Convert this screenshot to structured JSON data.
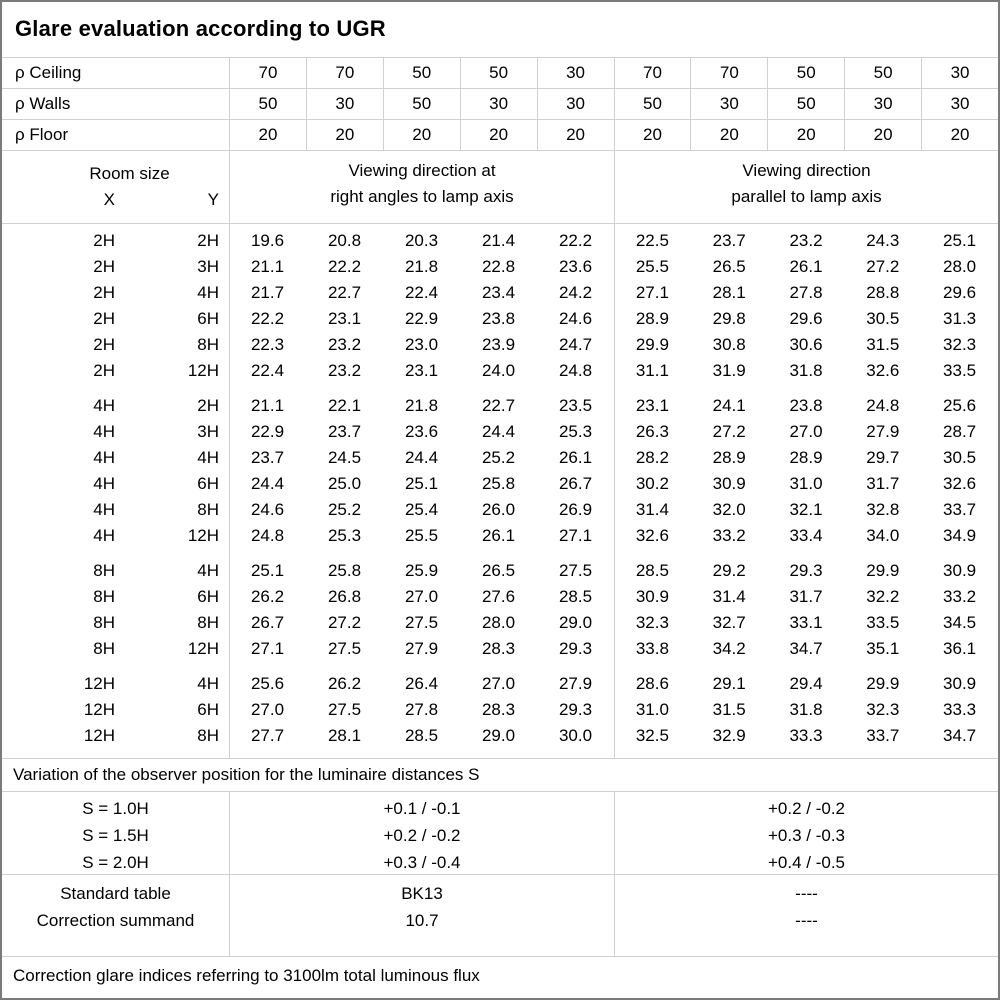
{
  "title": "Glare evaluation according to UGR",
  "colors": {
    "outer_border": "#7a7a7a",
    "grid_line": "#d0d0d0",
    "text": "#000000",
    "background": "#ffffff"
  },
  "reflectance_rows": [
    {
      "label": "ρ Ceiling",
      "values": [
        "70",
        "70",
        "50",
        "50",
        "30",
        "70",
        "70",
        "50",
        "50",
        "30"
      ]
    },
    {
      "label": "ρ Walls",
      "values": [
        "50",
        "30",
        "50",
        "30",
        "30",
        "50",
        "30",
        "50",
        "30",
        "30"
      ]
    },
    {
      "label": "ρ Floor",
      "values": [
        "20",
        "20",
        "20",
        "20",
        "20",
        "20",
        "20",
        "20",
        "20",
        "20"
      ]
    }
  ],
  "room_header": {
    "room_size": "Room size",
    "x": "X",
    "y": "Y",
    "group_right_angle": {
      "line1": "Viewing direction at",
      "line2": "right angles to lamp axis"
    },
    "group_parallel": {
      "line1": "Viewing direction",
      "line2": "parallel to lamp axis"
    }
  },
  "ugr_blocks": [
    {
      "rows": [
        {
          "x": "2H",
          "y": "2H",
          "right_angle": [
            "19.6",
            "20.8",
            "20.3",
            "21.4",
            "22.2"
          ],
          "parallel": [
            "22.5",
            "23.7",
            "23.2",
            "24.3",
            "25.1"
          ]
        },
        {
          "x": "2H",
          "y": "3H",
          "right_angle": [
            "21.1",
            "22.2",
            "21.8",
            "22.8",
            "23.6"
          ],
          "parallel": [
            "25.5",
            "26.5",
            "26.1",
            "27.2",
            "28.0"
          ]
        },
        {
          "x": "2H",
          "y": "4H",
          "right_angle": [
            "21.7",
            "22.7",
            "22.4",
            "23.4",
            "24.2"
          ],
          "parallel": [
            "27.1",
            "28.1",
            "27.8",
            "28.8",
            "29.6"
          ]
        },
        {
          "x": "2H",
          "y": "6H",
          "right_angle": [
            "22.2",
            "23.1",
            "22.9",
            "23.8",
            "24.6"
          ],
          "parallel": [
            "28.9",
            "29.8",
            "29.6",
            "30.5",
            "31.3"
          ]
        },
        {
          "x": "2H",
          "y": "8H",
          "right_angle": [
            "22.3",
            "23.2",
            "23.0",
            "23.9",
            "24.7"
          ],
          "parallel": [
            "29.9",
            "30.8",
            "30.6",
            "31.5",
            "32.3"
          ]
        },
        {
          "x": "2H",
          "y": "12H",
          "right_angle": [
            "22.4",
            "23.2",
            "23.1",
            "24.0",
            "24.8"
          ],
          "parallel": [
            "31.1",
            "31.9",
            "31.8",
            "32.6",
            "33.5"
          ]
        }
      ]
    },
    {
      "rows": [
        {
          "x": "4H",
          "y": "2H",
          "right_angle": [
            "21.1",
            "22.1",
            "21.8",
            "22.7",
            "23.5"
          ],
          "parallel": [
            "23.1",
            "24.1",
            "23.8",
            "24.8",
            "25.6"
          ]
        },
        {
          "x": "4H",
          "y": "3H",
          "right_angle": [
            "22.9",
            "23.7",
            "23.6",
            "24.4",
            "25.3"
          ],
          "parallel": [
            "26.3",
            "27.2",
            "27.0",
            "27.9",
            "28.7"
          ]
        },
        {
          "x": "4H",
          "y": "4H",
          "right_angle": [
            "23.7",
            "24.5",
            "24.4",
            "25.2",
            "26.1"
          ],
          "parallel": [
            "28.2",
            "28.9",
            "28.9",
            "29.7",
            "30.5"
          ]
        },
        {
          "x": "4H",
          "y": "6H",
          "right_angle": [
            "24.4",
            "25.0",
            "25.1",
            "25.8",
            "26.7"
          ],
          "parallel": [
            "30.2",
            "30.9",
            "31.0",
            "31.7",
            "32.6"
          ]
        },
        {
          "x": "4H",
          "y": "8H",
          "right_angle": [
            "24.6",
            "25.2",
            "25.4",
            "26.0",
            "26.9"
          ],
          "parallel": [
            "31.4",
            "32.0",
            "32.1",
            "32.8",
            "33.7"
          ]
        },
        {
          "x": "4H",
          "y": "12H",
          "right_angle": [
            "24.8",
            "25.3",
            "25.5",
            "26.1",
            "27.1"
          ],
          "parallel": [
            "32.6",
            "33.2",
            "33.4",
            "34.0",
            "34.9"
          ]
        }
      ]
    },
    {
      "rows": [
        {
          "x": "8H",
          "y": "4H",
          "right_angle": [
            "25.1",
            "25.8",
            "25.9",
            "26.5",
            "27.5"
          ],
          "parallel": [
            "28.5",
            "29.2",
            "29.3",
            "29.9",
            "30.9"
          ]
        },
        {
          "x": "8H",
          "y": "6H",
          "right_angle": [
            "26.2",
            "26.8",
            "27.0",
            "27.6",
            "28.5"
          ],
          "parallel": [
            "30.9",
            "31.4",
            "31.7",
            "32.2",
            "33.2"
          ]
        },
        {
          "x": "8H",
          "y": "8H",
          "right_angle": [
            "26.7",
            "27.2",
            "27.5",
            "28.0",
            "29.0"
          ],
          "parallel": [
            "32.3",
            "32.7",
            "33.1",
            "33.5",
            "34.5"
          ]
        },
        {
          "x": "8H",
          "y": "12H",
          "right_angle": [
            "27.1",
            "27.5",
            "27.9",
            "28.3",
            "29.3"
          ],
          "parallel": [
            "33.8",
            "34.2",
            "34.7",
            "35.1",
            "36.1"
          ]
        }
      ]
    },
    {
      "rows": [
        {
          "x": "12H",
          "y": "4H",
          "right_angle": [
            "25.6",
            "26.2",
            "26.4",
            "27.0",
            "27.9"
          ],
          "parallel": [
            "28.6",
            "29.1",
            "29.4",
            "29.9",
            "30.9"
          ]
        },
        {
          "x": "12H",
          "y": "6H",
          "right_angle": [
            "27.0",
            "27.5",
            "27.8",
            "28.3",
            "29.3"
          ],
          "parallel": [
            "31.0",
            "31.5",
            "31.8",
            "32.3",
            "33.3"
          ]
        },
        {
          "x": "12H",
          "y": "8H",
          "right_angle": [
            "27.7",
            "28.1",
            "28.5",
            "29.0",
            "30.0"
          ],
          "parallel": [
            "32.5",
            "32.9",
            "33.3",
            "33.7",
            "34.7"
          ]
        }
      ]
    }
  ],
  "variation": {
    "header": "Variation of the observer position for the luminaire distances S",
    "rows": [
      {
        "s": "S = 1.0H",
        "right_angle": "+0.1 / -0.1",
        "parallel": "+0.2 / -0.2"
      },
      {
        "s": "S = 1.5H",
        "right_angle": "+0.2 / -0.2",
        "parallel": "+0.3 / -0.3"
      },
      {
        "s": "S = 2.0H",
        "right_angle": "+0.3 / -0.4",
        "parallel": "+0.4 / -0.5"
      }
    ]
  },
  "summary": {
    "rows": [
      {
        "label": "Standard table",
        "right_angle": "BK13",
        "parallel": "----"
      },
      {
        "label": "Correction summand",
        "right_angle": "10.7",
        "parallel": "----"
      }
    ]
  },
  "footer": "Correction glare indices referring to 3100lm total luminous flux"
}
